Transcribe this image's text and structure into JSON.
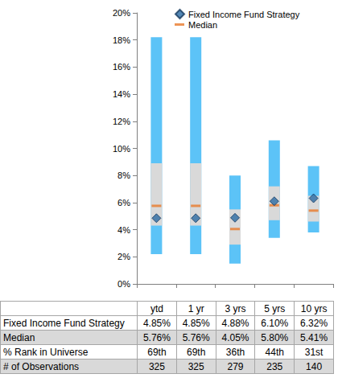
{
  "chart_data": {
    "type": "range",
    "categories": [
      "ytd",
      "1 yr",
      "3 yrs",
      "5 yrs",
      "10 yrs"
    ],
    "ranges": [
      {
        "color": "#5cc3f7",
        "low": [
          2.2,
          2.2,
          1.5,
          3.4,
          3.8
        ],
        "high": [
          18.2,
          18.2,
          8.0,
          10.6,
          8.7
        ]
      },
      {
        "color": "#d9d9d9",
        "low": [
          4.3,
          4.3,
          2.9,
          4.7,
          4.6
        ],
        "high": [
          8.9,
          8.9,
          5.5,
          7.2,
          6.5
        ]
      }
    ],
    "series": [
      {
        "name": "Median",
        "type": "scatter",
        "marker": "dash",
        "color": "#e8792a",
        "values": [
          5.76,
          5.76,
          4.05,
          5.8,
          5.41
        ],
        "value_labels": [
          "5.76%",
          "5.76%",
          "4.05%",
          "5.80%",
          "5.41%"
        ]
      },
      {
        "name": "Fixed Income Fund Strategy",
        "type": "scatter",
        "marker": "diamond",
        "color": "#2a6aa3",
        "values": [
          4.85,
          4.85,
          4.88,
          6.1,
          6.32
        ],
        "value_labels": [
          "4.85%",
          "4.85%",
          "4.88%",
          "6.10%",
          "6.32%"
        ]
      }
    ],
    "ylim": [
      0,
      20
    ],
    "yticks": [
      {
        "value": 0,
        "label": "0%"
      },
      {
        "value": 2,
        "label": "2%"
      },
      {
        "value": 4,
        "label": "4%"
      },
      {
        "value": 6,
        "label": "6%"
      },
      {
        "value": 8,
        "label": "8%"
      },
      {
        "value": 10,
        "label": "10%"
      },
      {
        "value": 12,
        "label": "12%"
      },
      {
        "value": 14,
        "label": "14%"
      },
      {
        "value": 16,
        "label": "16%"
      },
      {
        "value": 18,
        "label": "18%"
      },
      {
        "value": 20,
        "label": "20%"
      }
    ],
    "grid": false,
    "legend": "upper left",
    "tick_labels": "y",
    "table": {
      "rows": [
        {
          "label": "% Rank in Universe",
          "values": [
            "69th",
            "69th",
            "36th",
            "44th",
            "31st"
          ]
        },
        {
          "label": "# of Observations",
          "values": [
            325,
            325,
            279,
            235,
            140
          ]
        }
      ]
    }
  }
}
